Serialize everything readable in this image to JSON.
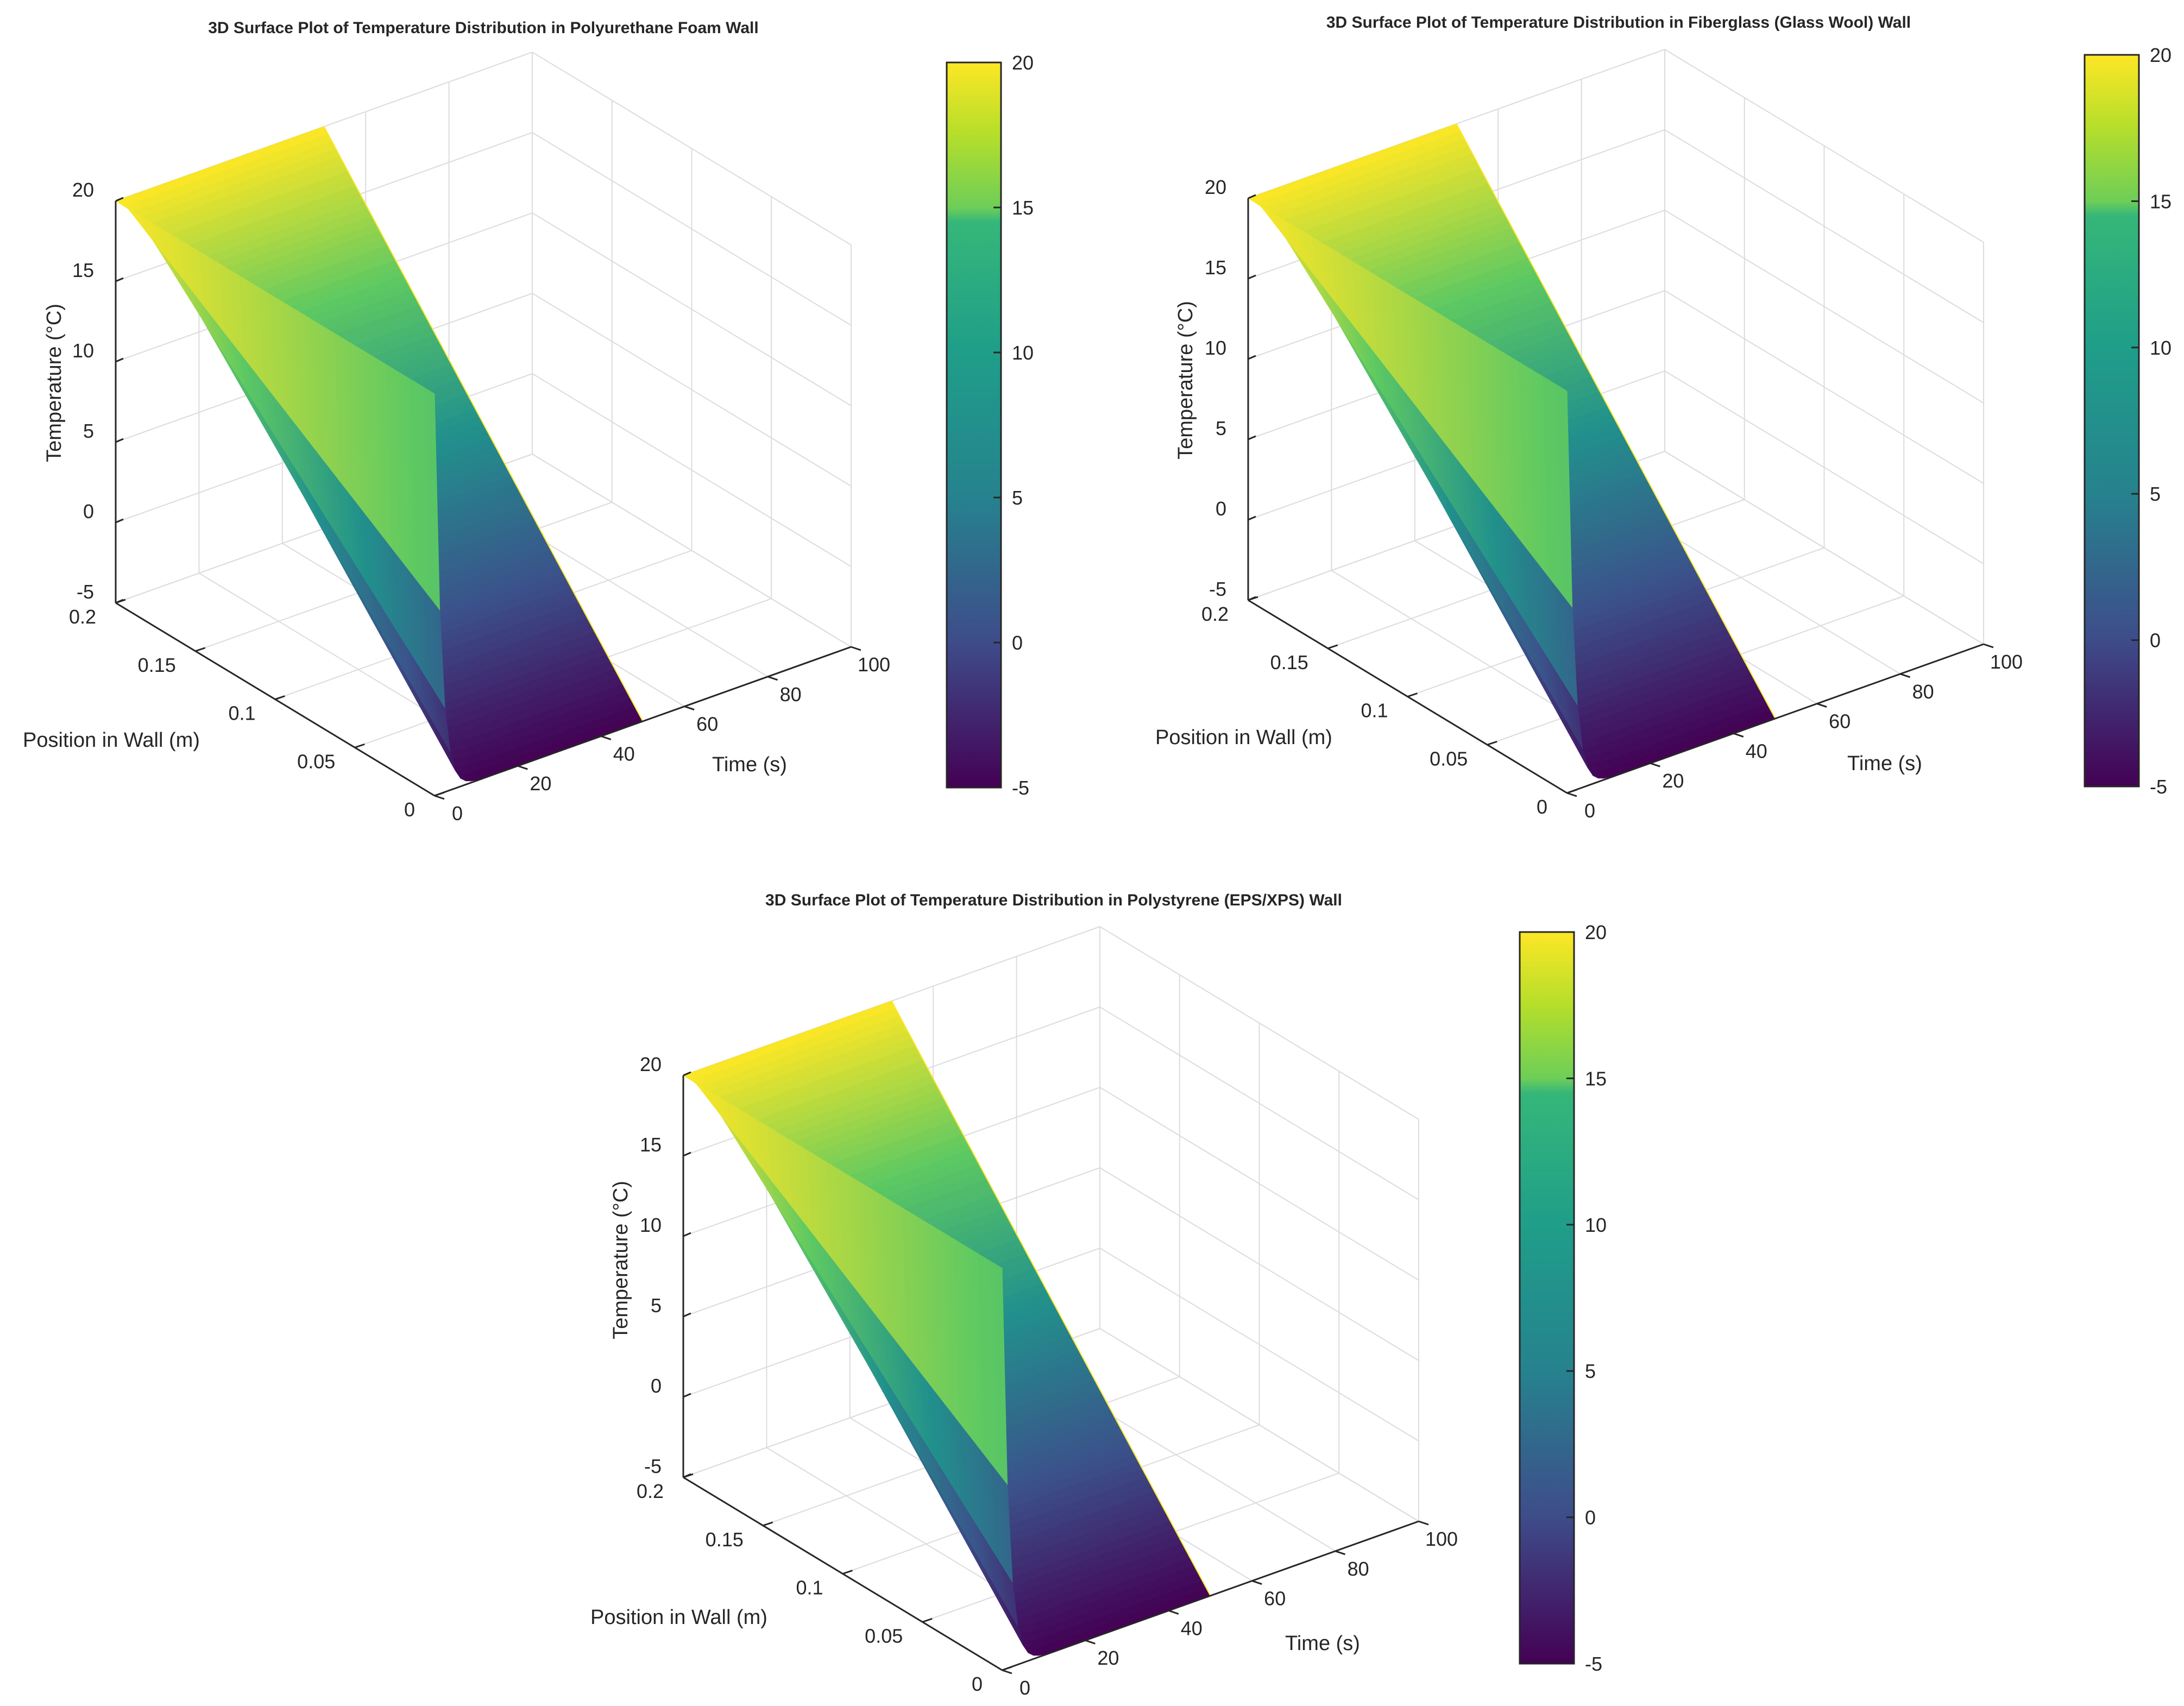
{
  "chart_data": [
    {
      "type": "surface",
      "title": "3D Surface Plot of Temperature Distribution in Polyurethane Foam Wall",
      "xlabel": "Time (s)",
      "ylabel": "Position in Wall (m)",
      "zlabel": "Temperature (°C)",
      "xlim": [
        0,
        100
      ],
      "ylim": [
        0,
        0.2
      ],
      "zlim": [
        -5,
        20
      ],
      "xticks": [
        "0",
        "20",
        "40",
        "60",
        "80",
        "100"
      ],
      "yticks": [
        "0",
        "0.05",
        "0.1",
        "0.15",
        "0.2"
      ],
      "zticks": [
        "-5",
        "0",
        "5",
        "10",
        "15",
        "20"
      ],
      "grid": true,
      "colormap": "viridis",
      "clim": [
        -5,
        20
      ],
      "colorbar_ticks": [
        "-5",
        "0",
        "5",
        "10",
        "15",
        "20"
      ],
      "data_extent": {
        "time_max": 50,
        "position_max": 0.2
      },
      "boundary_temperatures": {
        "outer_wall": -5,
        "inner_wall": 20
      },
      "temperature_at_time_max": [
        {
          "position": 0.0,
          "temperature": -5
        },
        {
          "position": 0.05,
          "temperature": 1.2
        },
        {
          "position": 0.1,
          "temperature": 7.5
        },
        {
          "position": 0.15,
          "temperature": 13.8
        },
        {
          "position": 0.2,
          "temperature": 20
        }
      ]
    },
    {
      "type": "surface",
      "title": "3D Surface Plot of Temperature Distribution in Fiberglass (Glass Wool) Wall",
      "xlabel": "Time (s)",
      "ylabel": "Position in Wall (m)",
      "zlabel": "Temperature (°C)",
      "xlim": [
        0,
        100
      ],
      "ylim": [
        0,
        0.2
      ],
      "zlim": [
        -5,
        20
      ],
      "xticks": [
        "0",
        "20",
        "40",
        "60",
        "80",
        "100"
      ],
      "yticks": [
        "0",
        "0.05",
        "0.1",
        "0.15",
        "0.2"
      ],
      "zticks": [
        "-5",
        "0",
        "5",
        "10",
        "15",
        "20"
      ],
      "grid": true,
      "colormap": "viridis",
      "clim": [
        -5,
        20
      ],
      "colorbar_ticks": [
        "-5",
        "0",
        "5",
        "10",
        "15",
        "20"
      ],
      "data_extent": {
        "time_max": 50,
        "position_max": 0.2
      },
      "boundary_temperatures": {
        "outer_wall": -5,
        "inner_wall": 20
      },
      "temperature_at_time_max": [
        {
          "position": 0.0,
          "temperature": -5
        },
        {
          "position": 0.05,
          "temperature": 1.2
        },
        {
          "position": 0.1,
          "temperature": 7.5
        },
        {
          "position": 0.15,
          "temperature": 13.8
        },
        {
          "position": 0.2,
          "temperature": 20
        }
      ]
    },
    {
      "type": "surface",
      "title": "3D Surface Plot of Temperature Distribution in Polystyrene (EPS/XPS) Wall",
      "xlabel": "Time (s)",
      "ylabel": "Position in Wall (m)",
      "zlabel": "Temperature (°C)",
      "xlim": [
        0,
        100
      ],
      "ylim": [
        0,
        0.2
      ],
      "zlim": [
        -5,
        20
      ],
      "xticks": [
        "0",
        "20",
        "40",
        "60",
        "80",
        "100"
      ],
      "yticks": [
        "0",
        "0.05",
        "0.1",
        "0.15",
        "0.2"
      ],
      "zticks": [
        "-5",
        "0",
        "5",
        "10",
        "15",
        "20"
      ],
      "grid": true,
      "colormap": "viridis",
      "clim": [
        -5,
        20
      ],
      "colorbar_ticks": [
        "-5",
        "0",
        "5",
        "10",
        "15",
        "20"
      ],
      "data_extent": {
        "time_max": 50,
        "position_max": 0.2
      },
      "boundary_temperatures": {
        "outer_wall": -5,
        "inner_wall": 20
      },
      "temperature_at_time_max": [
        {
          "position": 0.0,
          "temperature": -5
        },
        {
          "position": 0.05,
          "temperature": 1.2
        },
        {
          "position": 0.1,
          "temperature": 7.5
        },
        {
          "position": 0.15,
          "temperature": 13.8
        },
        {
          "position": 0.2,
          "temperature": 20
        }
      ]
    }
  ],
  "colors": {
    "text": "#262626",
    "axis": "#262626",
    "grid": "#dcdcdc",
    "viridis": [
      "#440154",
      "#3b528b",
      "#21918c",
      "#5ec962",
      "#fde725"
    ]
  }
}
